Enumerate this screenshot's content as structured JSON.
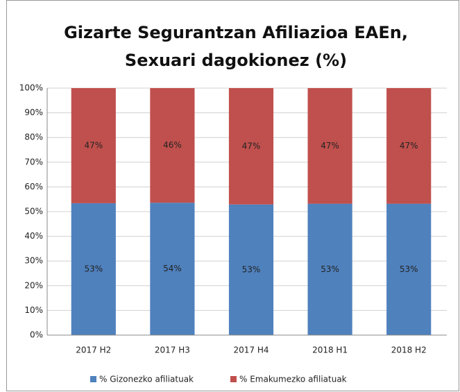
{
  "chart_data": {
    "type": "stacked_bar",
    "title": [
      "Gizarte Segurantzan Afiliazioa EAEn,",
      "Sexuari dagokionez (%)"
    ],
    "categories": [
      "2017 H2",
      "2017 H3",
      "2017 H4",
      "2018 H1",
      "2018 H2"
    ],
    "series": [
      {
        "name": "% Gizonezko afiliatuak",
        "color": "#4f81bd",
        "values": [
          53.4,
          53.6,
          52.9,
          53.2,
          53.2
        ],
        "value_labels": [
          "53%",
          "54%",
          "53%",
          "53%",
          "53%"
        ]
      },
      {
        "name": "% Emakumezko afiliatuak",
        "color": "#c0504d",
        "values": [
          46.6,
          46.4,
          47.1,
          46.8,
          46.8
        ],
        "value_labels": [
          "47%",
          "46%",
          "47%",
          "47%",
          "47%"
        ]
      }
    ],
    "ylim": [
      0,
      100
    ],
    "yticks": [
      {
        "value": 0,
        "label": "0%"
      },
      {
        "value": 10,
        "label": "10%"
      },
      {
        "value": 20,
        "label": "20%"
      },
      {
        "value": 30,
        "label": "30%"
      },
      {
        "value": 40,
        "label": "40%"
      },
      {
        "value": 50,
        "label": "50%"
      },
      {
        "value": 60,
        "label": "60%"
      },
      {
        "value": 70,
        "label": "70%"
      },
      {
        "value": 80,
        "label": "80%"
      },
      {
        "value": 90,
        "label": "90%"
      },
      {
        "value": 100,
        "label": "100%"
      }
    ],
    "grid": true,
    "legend": "bottom"
  }
}
